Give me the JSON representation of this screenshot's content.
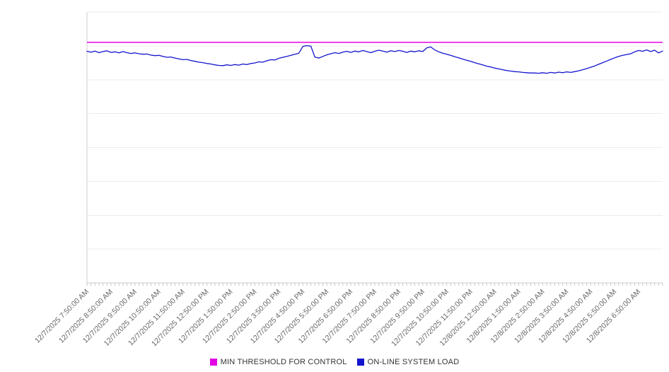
{
  "legend": {
    "items": [
      {
        "label": "MIN THRESHOLD FOR CONTROL",
        "color": "#e400e4"
      },
      {
        "label": "ON-LINE SYSTEM LOAD",
        "color": "#1414cf"
      }
    ]
  },
  "style": {
    "gridline_color": "#ececec",
    "axis_color": "#cccccc",
    "tick_color": "#c9c9c9",
    "label_color": "#666666",
    "background": "#ffffff"
  },
  "chart_data": {
    "type": "line",
    "title": "",
    "xlabel": "",
    "ylabel": "",
    "ylim": [
      0,
      100
    ],
    "y_gridline_steps": 8,
    "y_axis_labels_visible": false,
    "grid": "horizontal",
    "legend_position": "bottom",
    "x_labels": [
      "12/7/2025 7:50:00 AM",
      "12/7/2025 8:50:00 AM",
      "12/7/2025 9:50:00 AM",
      "12/7/2025 10:50:00 AM",
      "12/7/2025 11:50:00 AM",
      "12/7/2025 12:50:00 PM",
      "12/7/2025 1:50:00 PM",
      "12/7/2025 2:50:00 PM",
      "12/7/2025 3:50:00 PM",
      "12/7/2025 4:50:00 PM",
      "12/7/2025 5:50:00 PM",
      "12/7/2025 6:50:00 PM",
      "12/7/2025 7:50:00 PM",
      "12/7/2025 8:50:00 PM",
      "12/7/2025 9:50:00 PM",
      "12/7/2025 10:50:00 PM",
      "12/7/2025 11:50:00 PM",
      "12/8/2025 12:50:00 AM",
      "12/8/2025 1:50:00 AM",
      "12/8/2025 2:50:00 AM",
      "12/8/2025 3:50:00 AM",
      "12/8/2025 4:50:00 AM",
      "12/8/2025 5:50:00 AM",
      "12/8/2025 6:50:00 AM"
    ],
    "points_per_label": 6,
    "series": [
      {
        "name": "MIN THRESHOLD FOR CONTROL",
        "kind": "threshold",
        "value": 88.8,
        "color": "#e400e4"
      },
      {
        "name": "ON-LINE SYSTEM LOAD",
        "kind": "line",
        "color": "#1414cf",
        "values": [
          85.5,
          85.2,
          85.6,
          85.0,
          85.4,
          85.7,
          85.1,
          85.3,
          84.9,
          85.4,
          85.0,
          84.7,
          84.9,
          84.6,
          84.4,
          84.5,
          84.1,
          83.9,
          84.0,
          83.6,
          83.3,
          83.4,
          83.0,
          82.7,
          82.4,
          82.5,
          82.1,
          81.8,
          81.5,
          81.3,
          81.0,
          80.8,
          80.5,
          80.3,
          80.2,
          80.5,
          80.3,
          80.6,
          80.4,
          80.8,
          80.6,
          81.0,
          81.2,
          81.6,
          81.5,
          82.0,
          82.4,
          82.3,
          82.9,
          83.3,
          83.6,
          84.0,
          84.4,
          84.8,
          87.3,
          87.6,
          87.4,
          83.4,
          83.0,
          83.6,
          84.2,
          84.6,
          85.0,
          84.7,
          85.2,
          85.5,
          85.1,
          85.6,
          85.3,
          85.8,
          85.4,
          85.0,
          85.5,
          85.9,
          85.6,
          85.2,
          85.7,
          85.4,
          85.8,
          85.5,
          85.1,
          85.6,
          85.3,
          85.7,
          85.4,
          86.8,
          87.1,
          86.0,
          85.3,
          84.8,
          84.4,
          84.0,
          83.5,
          83.1,
          82.6,
          82.2,
          81.8,
          81.3,
          80.9,
          80.5,
          80.0,
          79.7,
          79.3,
          79.0,
          78.7,
          78.4,
          78.2,
          78.0,
          77.9,
          77.7,
          77.6,
          77.5,
          77.5,
          77.4,
          77.6,
          77.4,
          77.7,
          77.5,
          77.8,
          77.6,
          77.9,
          77.7,
          78.0,
          78.3,
          78.7,
          79.1,
          79.6,
          80.1,
          80.7,
          81.3,
          81.9,
          82.5,
          83.1,
          83.6,
          84.0,
          84.3,
          84.6,
          85.3,
          85.8,
          85.5,
          86.0,
          85.4,
          85.9,
          84.9,
          85.6
        ]
      }
    ]
  }
}
